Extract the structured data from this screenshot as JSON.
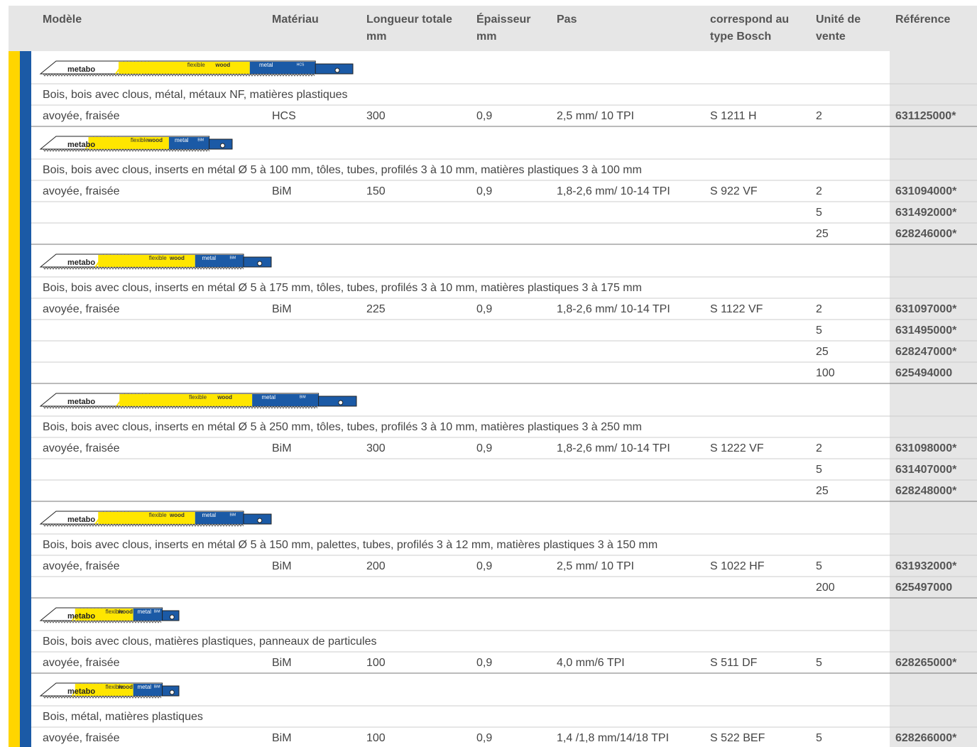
{
  "header": {
    "columns": [
      [
        "Modèle"
      ],
      [
        "Matériau"
      ],
      [
        "Longueur totale",
        "mm"
      ],
      [
        "Épaisseur",
        "mm"
      ],
      [
        "Pas"
      ],
      [
        "correspond au",
        "type Bosch"
      ],
      [
        "Unité de",
        "vente"
      ],
      [
        "Référence"
      ]
    ]
  },
  "groups": [
    {
      "blade": {
        "brand": "metabo",
        "flex": "flexible",
        "wood": "wood",
        "metal": "metal",
        "material": "HCS"
      },
      "description": "Bois, bois avec clous, métal, métaux NF, matières plastiques",
      "rows": [
        {
          "model": "avoyée, fraisée",
          "material": "HCS",
          "length": "300",
          "thickness": "0,9",
          "pitch": "2,5 mm/ 10 TPI",
          "bosch": "S 1211 H",
          "unit": "2",
          "reference": "631125000*"
        }
      ]
    },
    {
      "blade": {
        "brand": "metabo",
        "flex": "flexible",
        "wood": "wood",
        "metal": "metal",
        "material": "BiM"
      },
      "description": "Bois, bois avec clous, inserts en métal Ø 5 à 100 mm, tôles, tubes, profilés 3 à 10 mm, matières plastiques 3 à 100 mm",
      "rows": [
        {
          "model": "avoyée, fraisée",
          "material": "BiM",
          "length": "150",
          "thickness": "0,9",
          "pitch": "1,8-2,6 mm/ 10-14 TPI",
          "bosch": "S 922 VF",
          "unit": "2",
          "reference": "631094000*"
        },
        {
          "unit": "5",
          "reference": "631492000*"
        },
        {
          "unit": "25",
          "reference": "628246000*"
        }
      ]
    },
    {
      "blade": {
        "brand": "metabo",
        "flex": "flexible",
        "wood": "wood",
        "metal": "metal",
        "material": "BiM"
      },
      "description": "Bois, bois avec clous, inserts en métal Ø 5 à 175 mm, tôles, tubes, profilés 3 à 10 mm, matières plastiques 3 à 175 mm",
      "rows": [
        {
          "model": "avoyée, fraisée",
          "material": "BiM",
          "length": "225",
          "thickness": "0,9",
          "pitch": "1,8-2,6 mm/ 10-14 TPI",
          "bosch": "S 1122 VF",
          "unit": "2",
          "reference": "631097000*"
        },
        {
          "unit": "5",
          "reference": "631495000*"
        },
        {
          "unit": "25",
          "reference": "628247000*"
        },
        {
          "unit": "100",
          "reference": "625494000"
        }
      ]
    },
    {
      "blade": {
        "brand": "metabo",
        "flex": "flexible",
        "wood": "wood",
        "metal": "metal",
        "material": "BiM"
      },
      "description": "Bois, bois avec clous, inserts en métal Ø 5 à 250 mm, tôles, tubes, profilés 3 à 10 mm, matières plastiques 3 à 250 mm",
      "rows": [
        {
          "model": "avoyée, fraisée",
          "material": "BiM",
          "length": "300",
          "thickness": "0,9",
          "pitch": "1,8-2,6 mm/ 10-14 TPI",
          "bosch": "S 1222 VF",
          "unit": "2",
          "reference": "631098000*"
        },
        {
          "unit": "5",
          "reference": "631407000*"
        },
        {
          "unit": "25",
          "reference": "628248000*"
        }
      ]
    },
    {
      "blade": {
        "brand": "metabo",
        "flex": "flexible",
        "wood": "wood",
        "metal": "metal",
        "material": "BiM"
      },
      "description": "Bois, bois avec clous, inserts en métal Ø 5 à 150 mm, palettes, tubes, profilés 3 à 12 mm, matières plastiques 3 à 150 mm",
      "rows": [
        {
          "model": "avoyée, fraisée",
          "material": "BiM",
          "length": "200",
          "thickness": "0,9",
          "pitch": "2,5 mm/ 10 TPI",
          "bosch": "S 1022 HF",
          "unit": "5",
          "reference": "631932000*"
        },
        {
          "unit": "200",
          "reference": "625497000"
        }
      ]
    },
    {
      "blade": {
        "brand": "metabo",
        "flex": "flexible",
        "wood": "wood",
        "metal": "metal",
        "material": "BiM"
      },
      "description": "Bois, bois avec clous, matières plastiques, panneaux de particules",
      "rows": [
        {
          "model": "avoyée, fraisée",
          "material": "BiM",
          "length": "100",
          "thickness": "0,9",
          "pitch": "4,0 mm/6 TPI",
          "bosch": "S 511 DF",
          "unit": "5",
          "reference": "628265000*"
        }
      ]
    },
    {
      "blade": {
        "brand": "metabo",
        "flex": "flexible",
        "wood": "wood",
        "metal": "metal",
        "material": "BiM"
      },
      "description": "Bois, métal, matières plastiques",
      "rows": [
        {
          "model": "avoyée, fraisée",
          "material": "BiM",
          "length": "100",
          "thickness": "0,9",
          "pitch": "1,4 /1,8 mm/14/18 TPI",
          "bosch": "S 522 BEF",
          "unit": "5",
          "reference": "628266000*"
        }
      ]
    }
  ]
}
